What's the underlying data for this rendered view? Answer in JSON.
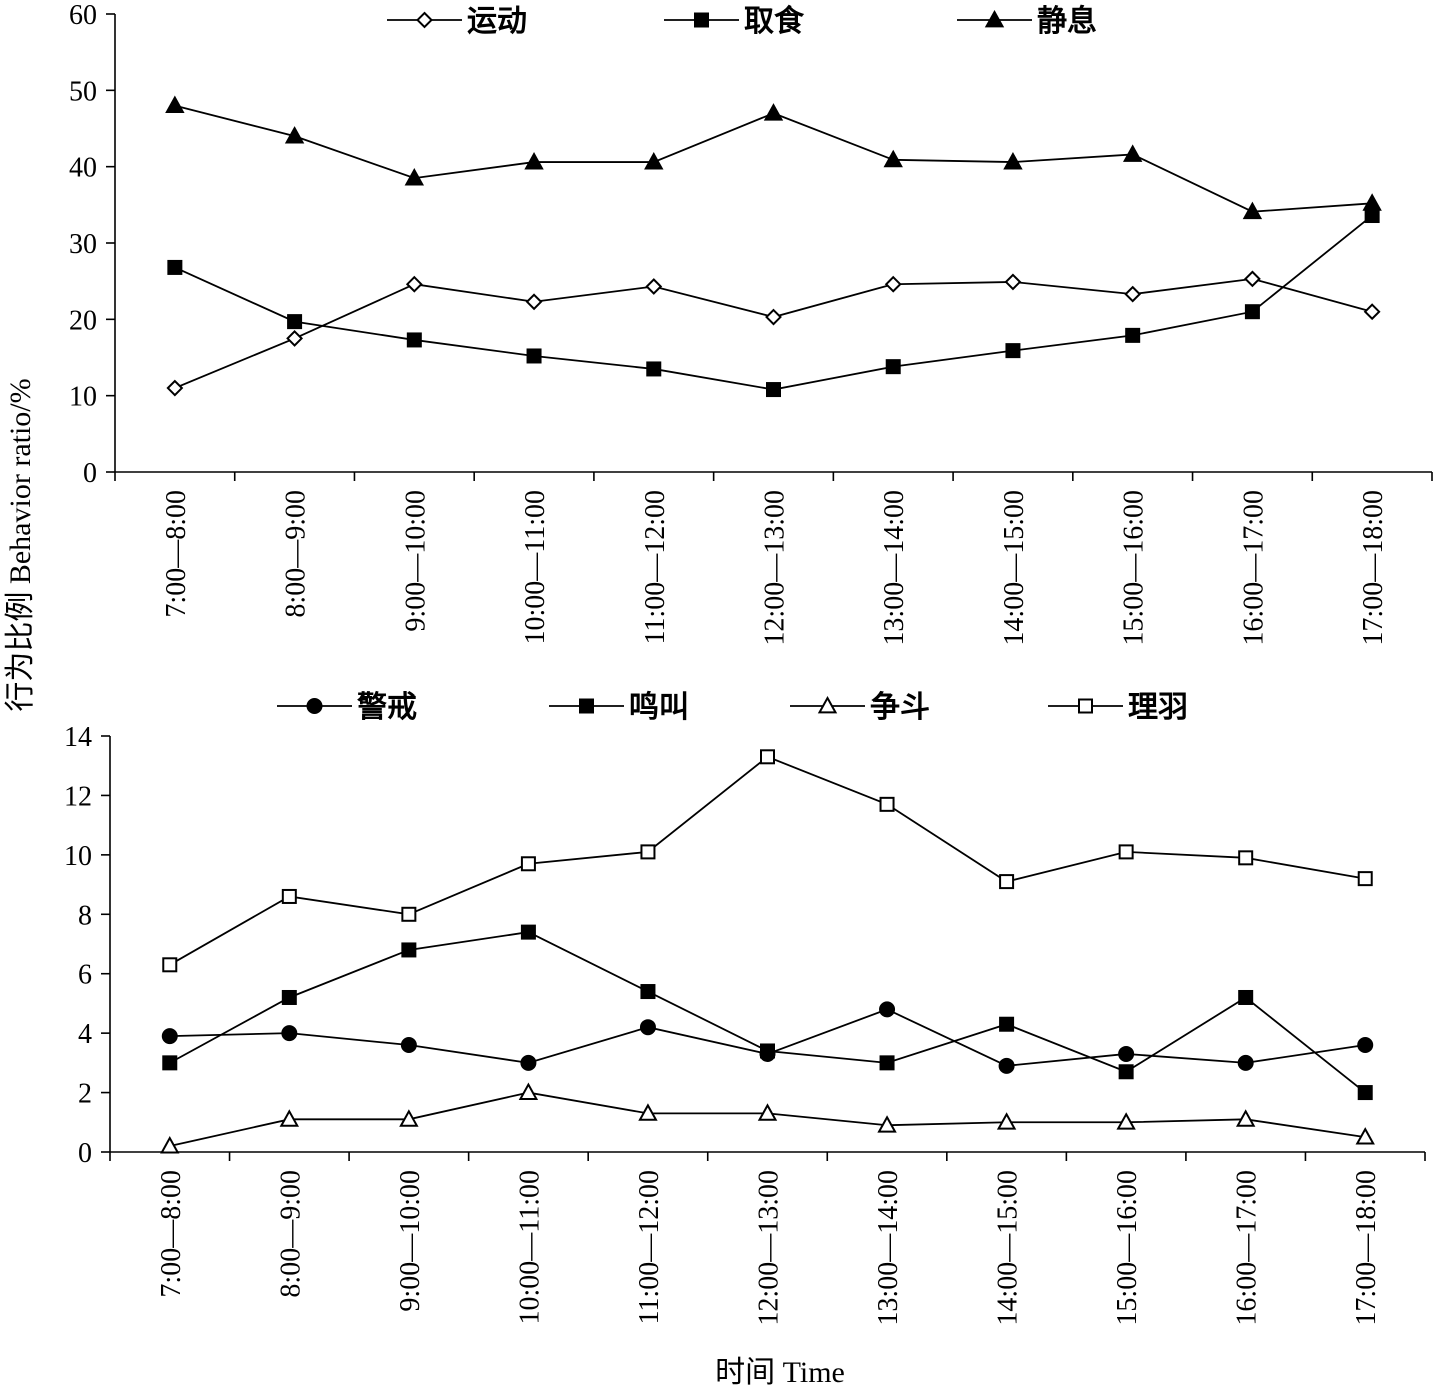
{
  "colors": {
    "line": "#000000",
    "background": "#ffffff"
  },
  "axis_titles": {
    "y": "行为比例 Behavior ratio/%",
    "x": "时间 Time"
  },
  "chart_data": [
    {
      "type": "line",
      "categories": [
        "7:00—8:00",
        "8:00—9:00",
        "9:00—10:00",
        "10:00—11:00",
        "11:00—12:00",
        "12:00—13:00",
        "13:00—14:00",
        "14:00—15:00",
        "15:00—16:00",
        "16:00—17:00",
        "17:00—18:00"
      ],
      "ylim": [
        0,
        60
      ],
      "yticks": [
        0,
        10,
        20,
        30,
        40,
        50,
        60
      ],
      "legend_position": "top",
      "grid": false,
      "series": [
        {
          "name": "运动",
          "marker": "diamond-open",
          "values": [
            11.0,
            17.5,
            24.6,
            22.3,
            24.3,
            20.3,
            24.6,
            24.9,
            23.3,
            25.3,
            21.0
          ]
        },
        {
          "name": "取食",
          "marker": "square-filled",
          "values": [
            26.8,
            19.7,
            17.3,
            15.2,
            13.5,
            10.8,
            13.8,
            15.9,
            17.9,
            21.0,
            33.6
          ]
        },
        {
          "name": "静息",
          "marker": "triangle-filled",
          "values": [
            48.0,
            44.0,
            38.5,
            40.6,
            40.6,
            47.0,
            40.9,
            40.6,
            41.6,
            34.1,
            35.2
          ]
        }
      ]
    },
    {
      "type": "line",
      "categories": [
        "7:00—8:00",
        "8:00—9:00",
        "9:00—10:00",
        "10:00—11:00",
        "11:00—12:00",
        "12:00—13:00",
        "13:00—14:00",
        "14:00—15:00",
        "15:00—16:00",
        "16:00—17:00",
        "17:00—18:00"
      ],
      "ylim": [
        0,
        14
      ],
      "yticks": [
        0,
        2,
        4,
        6,
        8,
        10,
        12,
        14
      ],
      "legend_position": "top",
      "grid": false,
      "series": [
        {
          "name": "警戒",
          "marker": "circle-filled",
          "values": [
            3.9,
            4.0,
            3.6,
            3.0,
            4.2,
            3.3,
            4.8,
            2.9,
            3.3,
            3.0,
            3.6
          ]
        },
        {
          "name": "鸣叫",
          "marker": "square-filled",
          "values": [
            3.0,
            5.2,
            6.8,
            7.4,
            5.4,
            3.4,
            3.0,
            4.3,
            2.7,
            5.2,
            2.0
          ]
        },
        {
          "name": "争斗",
          "marker": "triangle-open",
          "values": [
            0.2,
            1.1,
            1.1,
            2.0,
            1.3,
            1.3,
            0.9,
            1.0,
            1.0,
            1.1,
            0.5
          ]
        },
        {
          "name": "理羽",
          "marker": "square-open",
          "values": [
            6.3,
            8.6,
            8.0,
            9.7,
            10.1,
            13.3,
            11.7,
            9.1,
            10.1,
            9.9,
            9.2
          ]
        }
      ]
    }
  ]
}
